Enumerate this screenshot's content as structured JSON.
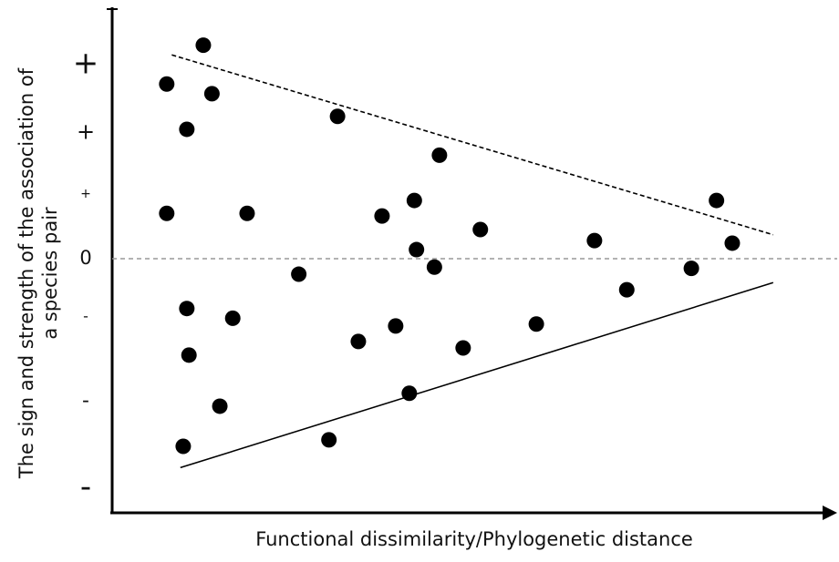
{
  "chart_data": {
    "type": "scatter",
    "xlabel": "Functional dissimilarity/Phylogenetic distance",
    "ylabel": [
      "The sign and strength of the association of",
      "a species pair"
    ],
    "xlim": [
      0,
      100
    ],
    "ylim": [
      -3.9,
      3.9
    ],
    "yticks": [
      {
        "value": 3,
        "label": "+"
      },
      {
        "value": 1.95,
        "label": "+"
      },
      {
        "value": 1,
        "label": "+"
      },
      0,
      {
        "value": -0.9,
        "label": "-"
      },
      {
        "value": -2.2,
        "label": "-"
      },
      {
        "value": -3.55,
        "label": "-"
      }
    ],
    "zero_line": true,
    "color": "#000000",
    "x": [
      12.7,
      7.6,
      13.9,
      10.4,
      31.4,
      45.6,
      42.1,
      84.2,
      7.6,
      18.8,
      37.6,
      51.3,
      67.2,
      42.4,
      86.4,
      44.9,
      26.0,
      80.7,
      71.7,
      10.4,
      16.8,
      39.5,
      59.1,
      34.3,
      48.9,
      10.7,
      15.0,
      41.4,
      9.9,
      30.2
    ],
    "y": [
      3.3,
      2.7,
      2.55,
      2.0,
      2.2,
      1.6,
      0.9,
      0.9,
      0.7,
      0.7,
      0.66,
      0.45,
      0.28,
      0.14,
      0.24,
      -0.13,
      -0.24,
      -0.15,
      -0.48,
      -0.77,
      -0.92,
      -1.04,
      -1.01,
      -1.28,
      -1.38,
      -1.49,
      -2.28,
      -2.08,
      -2.9,
      -2.8
    ],
    "lines": [
      {
        "x": [
          8.3,
          92.1
        ],
        "y": [
          3.15,
          0.37
        ],
        "style": "dashed"
      },
      {
        "x": [
          9.5,
          92.1
        ],
        "y": [
          -3.23,
          -0.37
        ],
        "style": "solid"
      }
    ]
  }
}
